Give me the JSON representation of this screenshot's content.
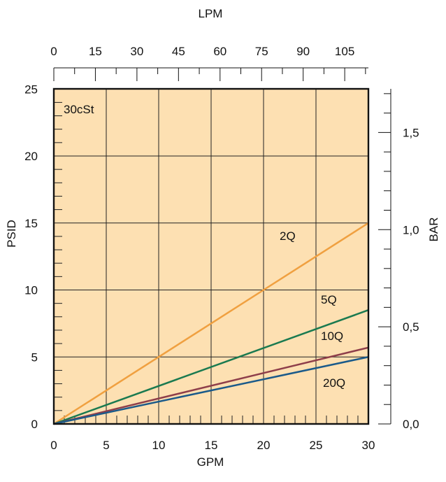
{
  "chart_data": {
    "type": "line",
    "title": "",
    "note": "30cSt",
    "xlabel": "GPM",
    "ylabel": "PSID",
    "x2label": "LPM",
    "y2label": "BAR",
    "xlim": [
      0,
      30
    ],
    "ylim": [
      0,
      25
    ],
    "x_ticks": [
      "0",
      "5",
      "10",
      "15",
      "20",
      "25",
      "30"
    ],
    "y_ticks": [
      "0",
      "5",
      "10",
      "15",
      "20",
      "25"
    ],
    "x2_ticks": [
      "0",
      "15",
      "30",
      "45",
      "60",
      "75",
      "90",
      "105"
    ],
    "y2_ticks": [
      "0,0",
      "0,5",
      "1,0",
      "1,5"
    ],
    "grid": true,
    "series": [
      {
        "name": "2Q",
        "color": "#f0a040",
        "x": [
          0,
          30
        ],
        "y": [
          0,
          15
        ]
      },
      {
        "name": "5Q",
        "color": "#1a7a50",
        "x": [
          0,
          30
        ],
        "y": [
          0,
          8.5
        ]
      },
      {
        "name": "10Q",
        "color": "#8e3e4a",
        "x": [
          0,
          30
        ],
        "y": [
          0,
          5.7
        ]
      },
      {
        "name": "20Q",
        "color": "#1a5a8a",
        "x": [
          0,
          30
        ],
        "y": [
          0,
          5
        ]
      }
    ],
    "colors": {
      "plot_background": "#fde0b2",
      "frame": "#111111"
    }
  }
}
